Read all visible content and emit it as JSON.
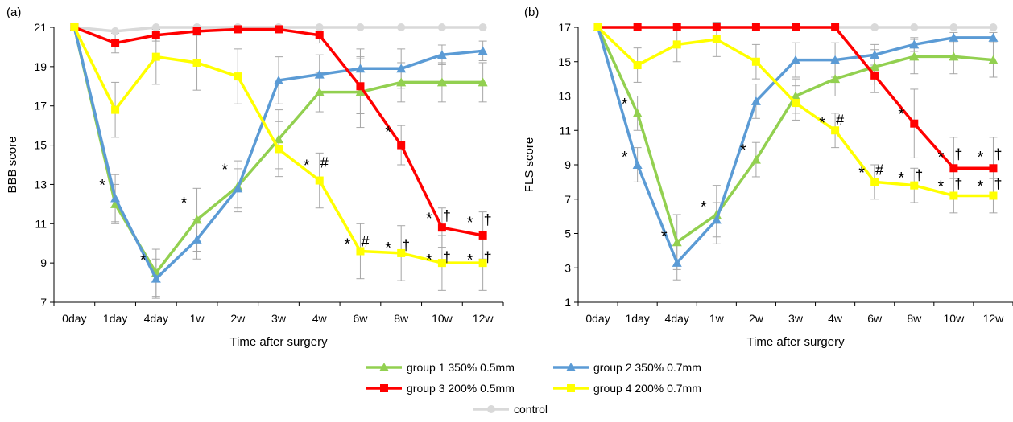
{
  "panels": [
    {
      "panel_label": "(a)",
      "ylabel": "BBB score",
      "xlabel": "Time after surgery",
      "yticks": [
        7,
        9,
        11,
        13,
        15,
        17,
        19,
        21
      ],
      "annotations": [
        {
          "text": "*",
          "x": "1day",
          "y": 13.1
        },
        {
          "text": "*",
          "x": "4day",
          "y": 9.3
        },
        {
          "text": "*",
          "x": "1w",
          "y": 12.2
        },
        {
          "text": "*",
          "x": "2w",
          "y": 13.9
        },
        {
          "text": "*",
          "x": "4w",
          "y": 14.1
        },
        {
          "text": "#",
          "x": "4w",
          "y": 14.1
        },
        {
          "text": "*",
          "x": "6w",
          "y": 10.1
        },
        {
          "text": "#",
          "x": "6w",
          "y": 10.1
        },
        {
          "text": "*",
          "x": "8w",
          "y": 15.8
        },
        {
          "text": "*",
          "x": "8w",
          "y": 9.9
        },
        {
          "text": "†",
          "x": "8w",
          "y": 9.9
        },
        {
          "text": "*",
          "x": "10w",
          "y": 11.4
        },
        {
          "text": "†",
          "x": "10w",
          "y": 11.4
        },
        {
          "text": "*",
          "x": "10w",
          "y": 9.3
        },
        {
          "text": "†",
          "x": "10w",
          "y": 9.3
        },
        {
          "text": "*",
          "x": "12w",
          "y": 11.2
        },
        {
          "text": "†",
          "x": "12w",
          "y": 11.2
        },
        {
          "text": "*",
          "x": "12w",
          "y": 9.3
        },
        {
          "text": "†",
          "x": "12w",
          "y": 9.3
        }
      ]
    },
    {
      "panel_label": "(b)",
      "ylabel": "FLS score",
      "xlabel": "Time after surgery",
      "yticks": [
        1,
        3,
        5,
        7,
        9,
        11,
        13,
        15,
        17
      ],
      "annotations": [
        {
          "text": "*",
          "x": "1day",
          "y": 12.7
        },
        {
          "text": "*",
          "x": "1day",
          "y": 9.6
        },
        {
          "text": "*",
          "x": "4day",
          "y": 5.0
        },
        {
          "text": "*",
          "x": "1w",
          "y": 6.7
        },
        {
          "text": "*",
          "x": "2w",
          "y": 10.0
        },
        {
          "text": "*",
          "x": "4w",
          "y": 11.6
        },
        {
          "text": "#",
          "x": "4w",
          "y": 11.6
        },
        {
          "text": "*",
          "x": "6w",
          "y": 8.7
        },
        {
          "text": "#",
          "x": "6w",
          "y": 8.7
        },
        {
          "text": "*",
          "x": "8w",
          "y": 12.1
        },
        {
          "text": "*",
          "x": "8w",
          "y": 8.4
        },
        {
          "text": "†",
          "x": "8w",
          "y": 8.4
        },
        {
          "text": "*",
          "x": "10w",
          "y": 9.6
        },
        {
          "text": "†",
          "x": "10w",
          "y": 9.6
        },
        {
          "text": "*",
          "x": "10w",
          "y": 7.9
        },
        {
          "text": "†",
          "x": "10w",
          "y": 7.9
        },
        {
          "text": "*",
          "x": "12w",
          "y": 9.6
        },
        {
          "text": "†",
          "x": "12w",
          "y": 9.6
        },
        {
          "text": "*",
          "x": "12w",
          "y": 7.9
        },
        {
          "text": "†",
          "x": "12w",
          "y": 7.9
        }
      ]
    }
  ],
  "chart_data": [
    {
      "type": "line",
      "panel": "(a)",
      "xlabel": "Time after surgery",
      "ylabel": "BBB score",
      "ylim": [
        7,
        21
      ],
      "categories": [
        "0day",
        "1day",
        "4day",
        "1w",
        "2w",
        "3w",
        "4w",
        "6w",
        "8w",
        "10w",
        "12w"
      ],
      "series": [
        {
          "name": "group 1 350% 0.5mm",
          "color": "#92d050",
          "marker": "triangle",
          "values": [
            21,
            12.0,
            8.5,
            11.2,
            12.9,
            15.3,
            17.7,
            17.7,
            18.2,
            18.2,
            18.2
          ],
          "errors": [
            0,
            1.0,
            1.2,
            1.6,
            1.3,
            1.5,
            1.0,
            1.8,
            1.0,
            1.0,
            1.0
          ]
        },
        {
          "name": "group 2 350% 0.7mm",
          "color": "#5b9bd5",
          "marker": "triangle",
          "values": [
            21,
            12.3,
            8.2,
            10.2,
            12.8,
            18.3,
            18.6,
            18.9,
            18.9,
            19.6,
            19.8
          ],
          "errors": [
            0,
            1.2,
            1.0,
            1.0,
            1.0,
            1.2,
            1.0,
            1.0,
            1.0,
            0.5,
            0.5
          ]
        },
        {
          "name": "group 3 200% 0.5mm",
          "color": "#ff0000",
          "marker": "square",
          "values": [
            21,
            20.2,
            20.6,
            20.8,
            20.9,
            20.9,
            20.6,
            18.0,
            15.0,
            10.8,
            10.4
          ],
          "errors": [
            0,
            0.5,
            0.3,
            0.2,
            0.1,
            0.1,
            0.4,
            1.4,
            1.0,
            1.0,
            1.2
          ]
        },
        {
          "name": "group 4 200% 0.7mm",
          "color": "#ffff00",
          "marker": "square",
          "values": [
            21,
            16.8,
            19.5,
            19.2,
            18.5,
            14.8,
            13.2,
            9.6,
            9.5,
            9.0,
            9.0
          ],
          "errors": [
            0,
            1.4,
            1.4,
            1.4,
            1.4,
            1.4,
            1.4,
            1.4,
            1.4,
            1.4,
            1.4
          ]
        },
        {
          "name": "control",
          "color": "#d9d9d9",
          "marker": "circle",
          "values": [
            21,
            20.8,
            21,
            21,
            21,
            21,
            21,
            21,
            21,
            21,
            21
          ],
          "errors": [
            0,
            0,
            0,
            0,
            0,
            0,
            0,
            0,
            0,
            0,
            0
          ]
        }
      ]
    },
    {
      "type": "line",
      "panel": "(b)",
      "xlabel": "Time after surgery",
      "ylabel": "FLS score",
      "ylim": [
        1,
        17
      ],
      "categories": [
        "0day",
        "1day",
        "4day",
        "1w",
        "2w",
        "3w",
        "4w",
        "6w",
        "8w",
        "10w",
        "12w"
      ],
      "series": [
        {
          "name": "group 1 350% 0.5mm",
          "color": "#92d050",
          "marker": "triangle",
          "values": [
            17,
            12.0,
            4.5,
            6.1,
            9.3,
            13.0,
            14.0,
            14.7,
            15.3,
            15.3,
            15.1
          ],
          "errors": [
            0,
            1.0,
            1.6,
            1.7,
            1.0,
            1.0,
            1.0,
            1.0,
            1.0,
            1.0,
            1.0
          ]
        },
        {
          "name": "group 2 350% 0.7mm",
          "color": "#5b9bd5",
          "marker": "triangle",
          "values": [
            17,
            9.0,
            3.3,
            5.8,
            12.7,
            15.1,
            15.1,
            15.4,
            16.0,
            16.4,
            16.4
          ],
          "errors": [
            0,
            1.0,
            1.0,
            1.0,
            1.0,
            1.0,
            1.0,
            0.6,
            0.4,
            0.3,
            0.3
          ]
        },
        {
          "name": "group 3 200% 0.5mm",
          "color": "#ff0000",
          "marker": "square",
          "values": [
            17,
            17,
            17,
            17,
            17,
            17,
            17,
            14.2,
            11.4,
            8.8,
            8.8
          ],
          "errors": [
            0,
            0,
            0,
            0,
            0,
            0,
            0,
            1.0,
            2.0,
            1.8,
            1.8
          ]
        },
        {
          "name": "group 4 200% 0.7mm",
          "color": "#ffff00",
          "marker": "square",
          "values": [
            17,
            14.8,
            16.0,
            16.3,
            15.0,
            12.6,
            11.0,
            8.0,
            7.8,
            7.2,
            7.2
          ],
          "errors": [
            0,
            1.0,
            1.0,
            1.0,
            1.0,
            1.0,
            1.0,
            1.0,
            1.0,
            1.0,
            1.0
          ]
        },
        {
          "name": "control",
          "color": "#d9d9d9",
          "marker": "circle",
          "values": [
            17,
            17,
            17,
            17,
            17,
            17,
            17,
            17,
            17,
            17,
            17
          ],
          "errors": [
            0,
            0,
            0,
            0,
            0,
            0,
            0,
            0,
            0,
            0,
            0
          ]
        }
      ]
    }
  ]
}
